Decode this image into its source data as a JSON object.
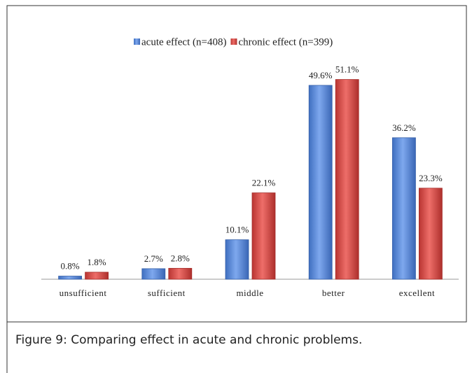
{
  "chart_data": {
    "type": "bar",
    "categories": [
      "unsufficient",
      "sufficient",
      "middle",
      "better",
      "excellent"
    ],
    "series": [
      {
        "name": "acute effect (n=408)",
        "color": "#5b8ede",
        "values": [
          0.8,
          2.7,
          10.1,
          49.6,
          36.2
        ],
        "value_labels": [
          "0.8%",
          "2.7%",
          "10.1%",
          "49.6%",
          "36.2%"
        ]
      },
      {
        "name": "chronic effect (n=399)",
        "color": "#d9504c",
        "values": [
          1.8,
          2.8,
          22.1,
          51.1,
          23.3
        ],
        "value_labels": [
          "1.8%",
          "2.8%",
          "22.1%",
          "51.1%",
          "23.3%"
        ]
      }
    ],
    "ylim": [
      0,
      70
    ],
    "legend": "top"
  },
  "caption": "Figure 9: Comparing effect in acute and chronic problems."
}
